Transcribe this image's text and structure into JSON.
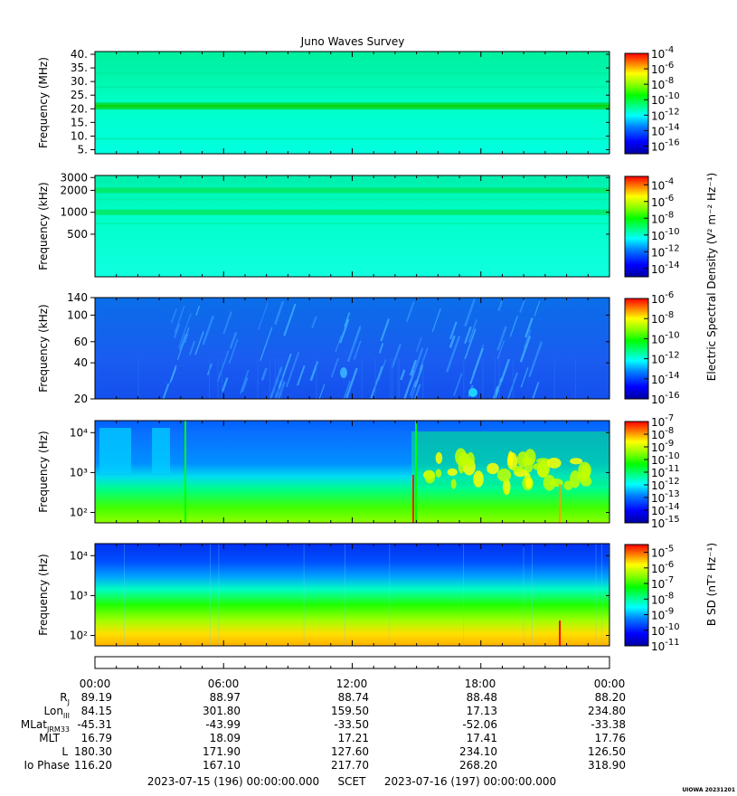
{
  "title": "Juno Waves Survey",
  "corner_stamp": "UIOWA 20231201",
  "colorbar_labels": {
    "electric": "Electric Spectral Density (V² m⁻² Hz⁻¹)",
    "magnetic": "B SD (nT² Hz⁻¹)"
  },
  "time_axis": {
    "ticks": [
      "00:00",
      "06:00",
      "12:00",
      "18:00",
      "00:00"
    ],
    "start_label": "2023-07-15 (196) 00:00:00.000",
    "scet_label": "SCET",
    "end_label": "2023-07-16 (197) 00:00:00.000"
  },
  "ephemeris": {
    "rows": [
      {
        "label": "Rj",
        "values": [
          "89.19",
          "88.97",
          "88.74",
          "88.48",
          "88.20"
        ]
      },
      {
        "label": "LonIII",
        "values": [
          "84.15",
          "301.80",
          "159.50",
          "17.13",
          "234.80"
        ]
      },
      {
        "label": "MLatJRM33",
        "values": [
          "-45.31",
          "-43.99",
          "-33.50",
          "-52.06",
          "-33.38"
        ]
      },
      {
        "label": "MLT",
        "values": [
          "16.79",
          "18.09",
          "17.21",
          "17.41",
          "17.76"
        ]
      },
      {
        "label": "L",
        "values": [
          "180.30",
          "171.90",
          "127.60",
          "234.10",
          "126.50"
        ]
      },
      {
        "label": "Io Phase",
        "values": [
          "116.20",
          "167.10",
          "217.70",
          "268.20",
          "318.90"
        ]
      }
    ]
  },
  "chart_data": [
    {
      "type": "heatmap",
      "ylabel": "Frequency (MHz)",
      "yscale": "linear",
      "ylim": [
        3.5,
        41
      ],
      "yticks": [
        "40.",
        "35.",
        "30.",
        "25.",
        "20.",
        "15.",
        "10.",
        "5."
      ],
      "ytick_values": [
        40,
        35,
        30,
        25,
        20,
        15,
        10,
        5
      ],
      "colorbar_ticks": [
        "-4",
        "-6",
        "-8",
        "-10",
        "-12",
        "-14",
        "-16"
      ],
      "colorbar_range": [
        -17,
        -4
      ],
      "features": [
        "uniform background ~1e-12",
        "band near 21 MHz ~1e-10"
      ]
    },
    {
      "type": "heatmap",
      "ylabel": "Frequency (kHz)",
      "yscale": "log",
      "ylim": [
        130,
        3200
      ],
      "yticks": [
        "3000",
        "2000",
        "1000",
        "500"
      ],
      "ytick_values": [
        3000,
        2000,
        1000,
        500
      ],
      "colorbar_ticks": [
        "-4",
        "-6",
        "-8",
        "-10",
        "-12",
        "-14"
      ],
      "colorbar_range": [
        -15,
        -3
      ],
      "features": [
        "bands near 2000 kHz and 1000 kHz"
      ]
    },
    {
      "type": "heatmap",
      "ylabel": "Frequency (kHz)",
      "yscale": "log",
      "ylim": [
        20,
        140
      ],
      "yticks": [
        "140",
        "100",
        "60",
        "40",
        "20"
      ],
      "ytick_values": [
        140,
        100,
        60,
        40,
        20
      ],
      "colorbar_ticks": [
        "-6",
        "-8",
        "-10",
        "-12",
        "-14",
        "-16"
      ],
      "colorbar_range": [
        -16,
        -6
      ],
      "features": [
        "background ~1e-14",
        "drifting bursts 02:00-20:00"
      ]
    },
    {
      "type": "heatmap",
      "ylabel": "Frequency (Hz)",
      "yscale": "log",
      "ylim": [
        55,
        20000
      ],
      "yticks": [
        "10⁴",
        "10³",
        "10²"
      ],
      "ytick_values": [
        10000,
        1000,
        100
      ],
      "colorbar_ticks": [
        "-7",
        "-8",
        "-9",
        "-10",
        "-11",
        "-12",
        "-13",
        "-14",
        "-15"
      ],
      "colorbar_range": [
        -15,
        -7
      ],
      "features": [
        "low-frequency emission below 1 kHz",
        "broadband activity after 15:00"
      ]
    },
    {
      "type": "heatmap",
      "ylabel": "Frequency (Hz)",
      "yscale": "log",
      "ylim": [
        55,
        20000
      ],
      "yticks": [
        "10⁴",
        "10³",
        "10²"
      ],
      "ytick_values": [
        10000,
        1000,
        100
      ],
      "colorbar_ticks": [
        "-5",
        "-6",
        "-7",
        "-8",
        "-9",
        "-10",
        "-11"
      ],
      "colorbar_range": [
        -11,
        -4.5
      ],
      "features": [
        "intensity rises toward low frequencies",
        "spike near 21:30"
      ]
    }
  ],
  "colors": {
    "colormap": [
      "#0000a0",
      "#0000ff",
      "#0080ff",
      "#00ffff",
      "#00ff80",
      "#00ff00",
      "#80ff00",
      "#ffff00",
      "#ff8000",
      "#ff0000"
    ]
  }
}
